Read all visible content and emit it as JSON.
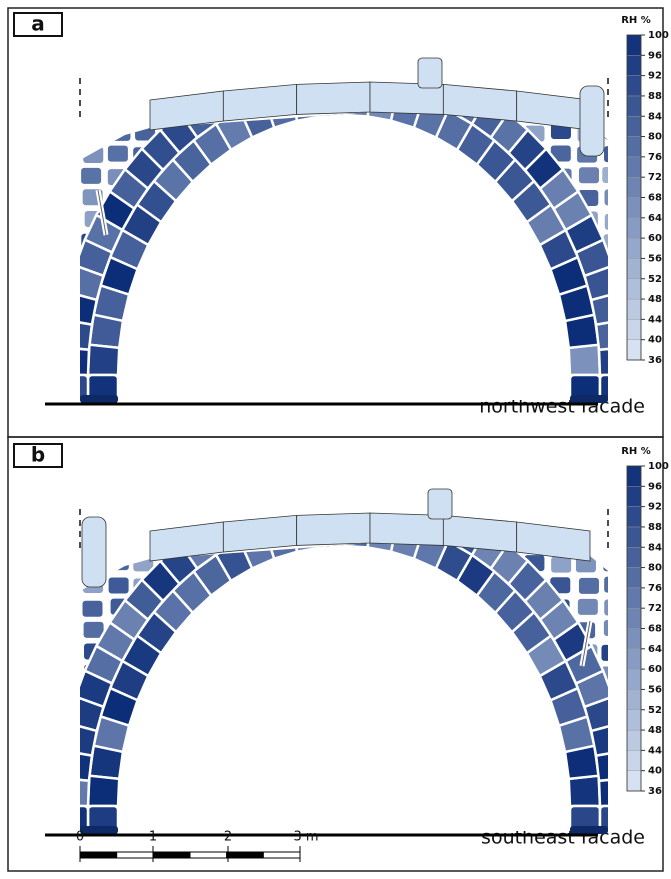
{
  "panels": [
    {
      "label": "a",
      "caption": "northwest facade"
    },
    {
      "label": "b",
      "caption": "southeast facade"
    }
  ],
  "colorbar": {
    "title": "RH %",
    "ticks": [
      36,
      40,
      44,
      48,
      52,
      56,
      60,
      64,
      68,
      72,
      76,
      80,
      84,
      88,
      92,
      96,
      100
    ]
  },
  "scale_bar": {
    "labels": [
      "0",
      "1",
      "2",
      "3 m"
    ]
  }
}
